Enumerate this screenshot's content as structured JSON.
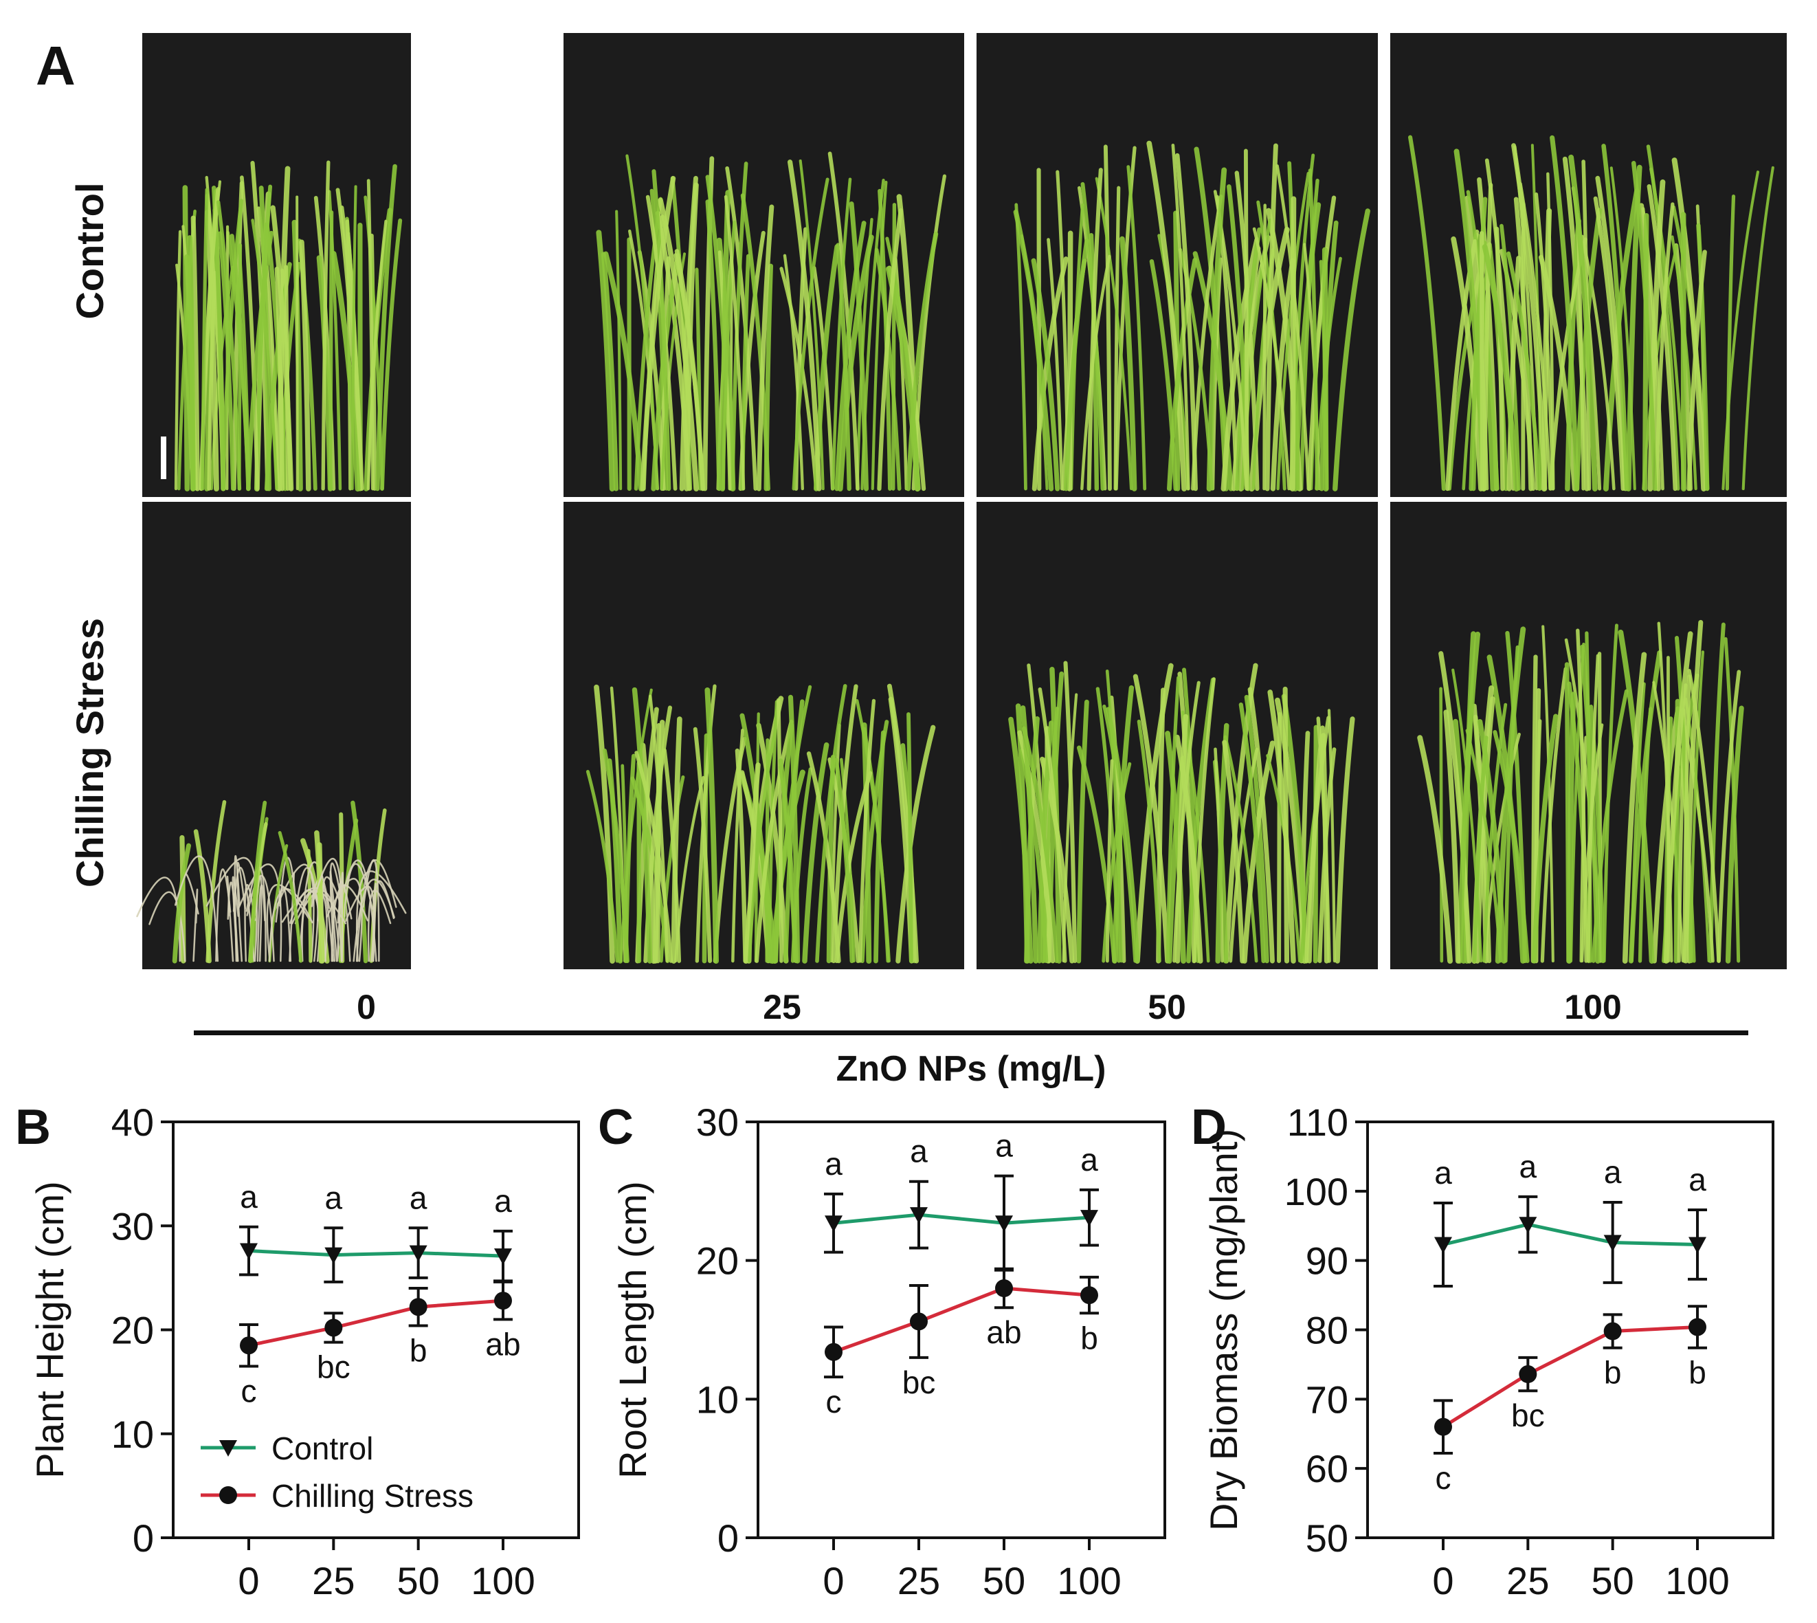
{
  "panel_a": {
    "label": "A",
    "rows": [
      "Control",
      "Chilling Stress"
    ],
    "concentrations": [
      "0",
      "25",
      "50",
      "100"
    ],
    "axis_title": "ZnO NPs (mg/L)"
  },
  "colors": {
    "control": "#1e9b6a",
    "chilling": "#d42b3a",
    "photo_bg": "#1c1c1c",
    "leaf": "#8cc63a",
    "leaf_light": "#b3dc5a",
    "leaf_pale": "#d7d3b8"
  },
  "legend": {
    "control": "Control",
    "chilling": "Chilling Stress"
  },
  "chart_data": [
    {
      "panel": "B",
      "type": "line",
      "ylabel": "Plant Height (cm)",
      "xlabel": "",
      "categories": [
        "0",
        "25",
        "50",
        "100"
      ],
      "ylim": [
        0,
        40
      ],
      "yticks": [
        0,
        10,
        20,
        30,
        40
      ],
      "series": [
        {
          "name": "Control",
          "marker": "triangle-down",
          "values": [
            27.6,
            27.2,
            27.4,
            27.1
          ],
          "errors": [
            2.3,
            2.6,
            2.4,
            2.4
          ],
          "letters": [
            "a",
            "a",
            "a",
            "a"
          ]
        },
        {
          "name": "Chilling Stress",
          "marker": "circle",
          "values": [
            18.5,
            20.2,
            22.2,
            22.8
          ],
          "errors": [
            2.0,
            1.4,
            1.8,
            1.8
          ],
          "letters": [
            "c",
            "bc",
            "b",
            "ab"
          ]
        }
      ],
      "legend": true
    },
    {
      "panel": "C",
      "type": "line",
      "ylabel": "Root Length (cm)",
      "xlabel": "",
      "categories": [
        "0",
        "25",
        "50",
        "100"
      ],
      "ylim": [
        0,
        30
      ],
      "yticks": [
        0,
        10,
        20,
        30
      ],
      "series": [
        {
          "name": "Control",
          "marker": "triangle-down",
          "values": [
            22.7,
            23.3,
            22.7,
            23.1
          ],
          "errors": [
            2.1,
            2.4,
            3.4,
            2.0
          ],
          "letters": [
            "a",
            "a",
            "a",
            "a"
          ]
        },
        {
          "name": "Chilling Stress",
          "marker": "circle",
          "values": [
            13.4,
            15.6,
            18.0,
            17.5
          ],
          "errors": [
            1.8,
            2.6,
            1.4,
            1.3
          ],
          "letters": [
            "c",
            "bc",
            "ab",
            "b"
          ]
        }
      ],
      "legend": false
    },
    {
      "panel": "D",
      "type": "line",
      "ylabel": "Dry Biomass (mg/plant)",
      "xlabel": "",
      "categories": [
        "0",
        "25",
        "50",
        "100"
      ],
      "ylim": [
        50,
        110
      ],
      "yticks": [
        50,
        60,
        70,
        80,
        90,
        100,
        110
      ],
      "series": [
        {
          "name": "Control",
          "marker": "triangle-down",
          "values": [
            92.3,
            95.2,
            92.6,
            92.3
          ],
          "errors": [
            6.0,
            4.0,
            5.8,
            5.0
          ],
          "letters": [
            "a",
            "a",
            "a",
            "a"
          ]
        },
        {
          "name": "Chilling Stress",
          "marker": "circle",
          "values": [
            66.0,
            73.6,
            79.8,
            80.4
          ],
          "errors": [
            3.8,
            2.4,
            2.4,
            3.0
          ],
          "letters": [
            "c",
            "bc",
            "b",
            "b"
          ]
        }
      ],
      "legend": false
    }
  ]
}
